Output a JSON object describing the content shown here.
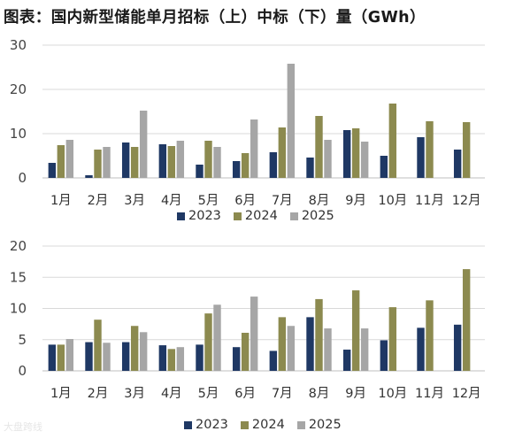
{
  "title": "图表：国内新型储能单月招标（上）中标（下）量（GWh）",
  "watermark": "大盘跨线",
  "colors": {
    "2023": "#1f3864",
    "2024": "#8c8a4f",
    "2025": "#a6a6a6"
  },
  "chart_data": [
    {
      "type": "bar",
      "categories": [
        "1月",
        "2月",
        "3月",
        "4月",
        "5月",
        "6月",
        "7月",
        "8月",
        "9月",
        "10月",
        "11月",
        "12月"
      ],
      "ylim": [
        0,
        30
      ],
      "yticks": [
        0,
        10,
        20,
        30
      ],
      "grid": true,
      "legend_position": "bottom",
      "series": [
        {
          "name": "2023",
          "values": [
            3.4,
            0.6,
            8.0,
            7.6,
            3.0,
            3.8,
            5.8,
            4.6,
            10.8,
            5.0,
            9.2,
            6.4
          ]
        },
        {
          "name": "2024",
          "values": [
            7.4,
            6.4,
            7.0,
            7.2,
            8.4,
            5.6,
            11.4,
            14.0,
            11.2,
            16.8,
            12.8,
            12.6
          ]
        },
        {
          "name": "2025",
          "values": [
            8.6,
            7.0,
            15.2,
            8.4,
            7.0,
            13.2,
            25.8,
            8.6,
            8.2,
            null,
            null,
            null
          ]
        }
      ]
    },
    {
      "type": "bar",
      "categories": [
        "1月",
        "2月",
        "3月",
        "4月",
        "5月",
        "6月",
        "7月",
        "8月",
        "9月",
        "10月",
        "11月",
        "12月"
      ],
      "ylim": [
        0,
        20
      ],
      "yticks": [
        0,
        5,
        10,
        15,
        20
      ],
      "grid": true,
      "legend_position": "bottom",
      "series": [
        {
          "name": "2023",
          "values": [
            4.2,
            4.6,
            4.6,
            4.1,
            4.2,
            3.8,
            3.2,
            8.6,
            3.4,
            4.9,
            6.9,
            7.4
          ]
        },
        {
          "name": "2024",
          "values": [
            4.2,
            8.2,
            7.2,
            3.5,
            9.2,
            6.1,
            8.6,
            11.5,
            12.9,
            10.2,
            11.3,
            16.3
          ]
        },
        {
          "name": "2025",
          "values": [
            5.1,
            4.5,
            6.2,
            3.8,
            10.6,
            11.9,
            7.2,
            6.8,
            6.8,
            null,
            null,
            null
          ]
        }
      ]
    }
  ]
}
